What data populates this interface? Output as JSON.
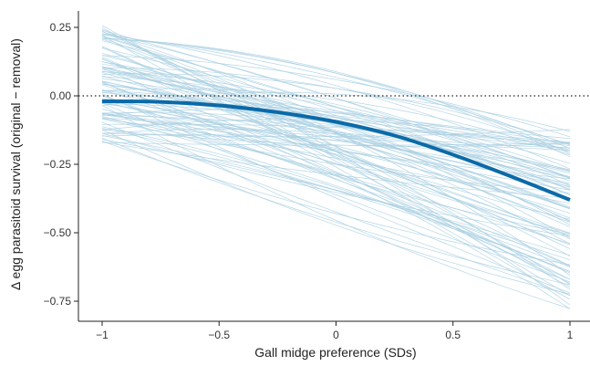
{
  "chart_data": {
    "type": "line",
    "xlabel": "Gall midge preference (SDs)",
    "ylabel": "Δ egg parasitoid survival (original − removal)",
    "xlim": [
      -1.08,
      1.08
    ],
    "ylim": [
      -0.82,
      0.31
    ],
    "x_ticks": [
      -1,
      -0.5,
      0,
      0.5,
      1
    ],
    "x_tick_labels": [
      "−1",
      "−0.5",
      "0",
      "0.5",
      "1"
    ],
    "y_ticks": [
      -0.75,
      -0.5,
      -0.25,
      0.0,
      0.25
    ],
    "y_tick_labels": [
      "−0.75",
      "−0.50",
      "−0.25",
      "0.00",
      "0.25"
    ],
    "reference_line": {
      "y": 0.0,
      "style": "dotted"
    },
    "grid": false,
    "legend": "none",
    "colors": {
      "mean_line": "#0b6aa8",
      "posterior_draws": "#a8cfe2",
      "reference": "#222222",
      "axis": "#222222"
    },
    "series": [
      {
        "role": "posterior-mean",
        "x": [
          -1,
          -0.75,
          -0.5,
          -0.25,
          0,
          0.25,
          0.5,
          0.75,
          1
        ],
        "y": [
          -0.02,
          -0.022,
          -0.035,
          -0.06,
          -0.095,
          -0.145,
          -0.215,
          -0.295,
          -0.38
        ]
      }
    ],
    "posterior_draws_summary": {
      "count": 100,
      "y_at_x_minus1_range": [
        -0.17,
        0.26
      ],
      "y_at_x_plus1_range": [
        -0.78,
        -0.12
      ]
    }
  }
}
